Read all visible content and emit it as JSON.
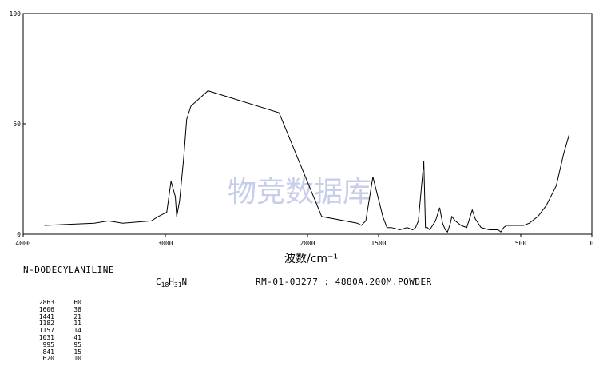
{
  "chart_data": {
    "type": "line",
    "xlabel": "波数/cm⁻¹",
    "x_ticks": [
      4000,
      3000,
      2000,
      1500,
      500,
      0
    ],
    "y_ticks": [
      0,
      50,
      100
    ],
    "xlim": [
      4000,
      0
    ],
    "ylim": [
      0,
      100
    ],
    "grid": false,
    "series": [
      {
        "x": [
          3850,
          3500,
          3400,
          3300,
          3100,
          3050,
          2990,
          2960,
          2930,
          2920,
          2900,
          2870,
          2863,
          2850,
          2820,
          2700,
          2200,
          1900,
          1650,
          1620,
          1606,
          1590,
          1540,
          1470,
          1441,
          1410,
          1350,
          1300,
          1260,
          1240,
          1220,
          1182,
          1170,
          1157,
          1140,
          1100,
          1070,
          1050,
          1031,
          1015,
          1000,
          995,
          985,
          960,
          920,
          880,
          841,
          820,
          780,
          720,
          660,
          640,
          620,
          600,
          520,
          480,
          440,
          380,
          320,
          250,
          200,
          160
        ],
        "y": [
          4,
          5,
          6,
          5,
          6,
          8,
          10,
          24,
          17,
          8,
          15,
          35,
          41,
          52,
          58,
          65,
          55,
          8,
          5,
          4,
          5,
          6,
          26,
          8,
          3,
          3,
          2,
          3,
          2,
          3,
          6,
          33,
          3,
          3,
          2,
          6,
          12,
          5,
          2,
          1,
          4,
          5,
          8,
          6,
          4,
          3,
          11,
          7,
          3,
          2,
          2,
          1,
          3,
          4,
          4,
          4,
          5,
          8,
          13,
          22,
          36,
          45
        ]
      }
    ]
  },
  "watermark": "物竞数据库",
  "compound_name": "N-DODECYLANILINE",
  "formula": {
    "c": "C",
    "c_sub": "18",
    "h": "H",
    "h_sub": "31",
    "n": "N"
  },
  "spectrum_info": "RM-01-03277 : 4880A.200M.POWDER",
  "peak_table": [
    {
      "wavenumber": "2863",
      "intensity": "60"
    },
    {
      "wavenumber": "1606",
      "intensity": "38"
    },
    {
      "wavenumber": "1441",
      "intensity": "21"
    },
    {
      "wavenumber": "1182",
      "intensity": "11"
    },
    {
      "wavenumber": "1157",
      "intensity": "14"
    },
    {
      "wavenumber": "1031",
      "intensity": "41"
    },
    {
      "wavenumber": "995",
      "intensity": "95"
    },
    {
      "wavenumber": "841",
      "intensity": "15"
    },
    {
      "wavenumber": "620",
      "intensity": "10"
    }
  ]
}
